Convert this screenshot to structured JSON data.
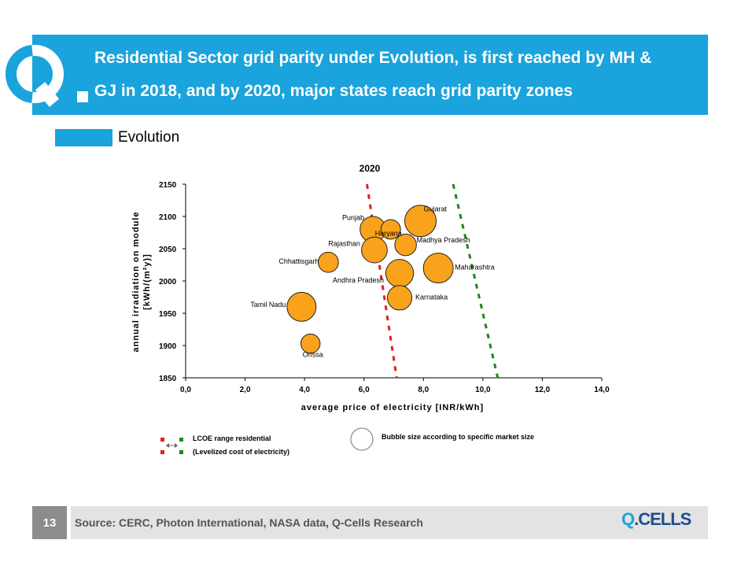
{
  "header": {
    "title_line1": "Residential Sector grid parity under Evolution, is first reached by MH &",
    "title_line2": "GJ in 2018, and by 2020, major states reach grid parity zones",
    "brand_color": "#1aa3dc"
  },
  "legend": {
    "scenario_label": "Evolution"
  },
  "chart_data": {
    "type": "scatter",
    "title": "2020",
    "xlabel": "average price of electricity [INR/kWh]",
    "ylabel_line1": "annual irradiation on module",
    "ylabel_line2": "[kWh/(m²y)]",
    "xlim": [
      0,
      14
    ],
    "ylim": [
      1850,
      2150
    ],
    "xticks": [
      "0,0",
      "2,0",
      "4,0",
      "6,0",
      "8,0",
      "10,0",
      "12,0",
      "14,0"
    ],
    "yticks": [
      "2150",
      "2100",
      "2050",
      "2000",
      "1950",
      "1900",
      "1850"
    ],
    "bubble_color": "#f9a21b",
    "series": [
      {
        "points": [
          {
            "label": "Gujarat",
            "x": 7.9,
            "y": 2093,
            "size": 1.0
          },
          {
            "label": "Punjab",
            "x": 6.3,
            "y": 2080,
            "size": 0.72
          },
          {
            "label": "Haryana",
            "x": 6.9,
            "y": 2080,
            "size": 0.42
          },
          {
            "label": "Rajasthan",
            "x": 6.35,
            "y": 2048,
            "size": 0.72
          },
          {
            "label": "Madhya Pradesh",
            "x": 7.4,
            "y": 2056,
            "size": 0.52
          },
          {
            "label": "Chhattisgarh",
            "x": 4.8,
            "y": 2029,
            "size": 0.45
          },
          {
            "label": "Andhra Pradesh",
            "x": 7.2,
            "y": 2012,
            "size": 0.82
          },
          {
            "label": "Maharashtra",
            "x": 8.5,
            "y": 2020,
            "size": 0.92
          },
          {
            "label": "Karnataka",
            "x": 7.2,
            "y": 1974,
            "size": 0.66
          },
          {
            "label": "Tamil Nadu",
            "x": 3.9,
            "y": 1960,
            "size": 0.88
          },
          {
            "label": "Orissa",
            "x": 4.2,
            "y": 1903,
            "size": 0.4
          }
        ]
      }
    ],
    "lcoe_lines": [
      {
        "color": "#e0201b",
        "x_top": 6.1,
        "x_bottom": 7.1
      },
      {
        "color": "#1a8a1a",
        "x_top": 9.0,
        "x_bottom": 10.5
      }
    ],
    "legend_lcoe_line1": "LCOE range residential",
    "legend_lcoe_line2": "(Levelized cost of electricity)",
    "legend_bubble": "Bubble size according to specific market size"
  },
  "footer": {
    "page_number": "13",
    "source": "Source: CERC, Photon International, NASA data, Q-Cells Research",
    "brand_q": "Q",
    "brand_rest": ".CELLS"
  }
}
